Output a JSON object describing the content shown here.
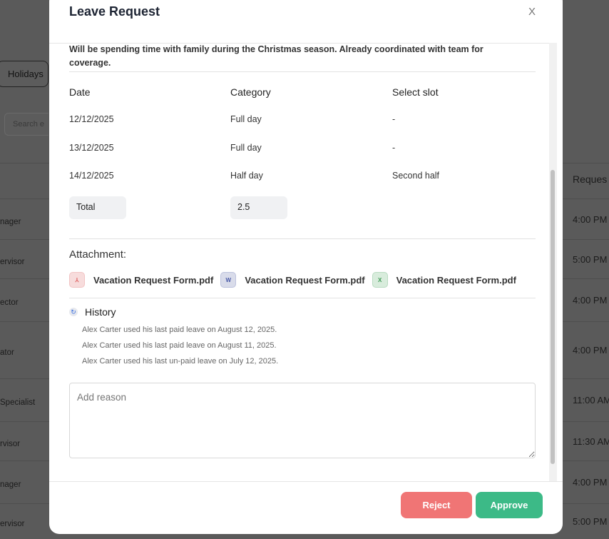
{
  "background": {
    "holidays_button": "Holidays",
    "search_placeholder": "Search e",
    "table_header_right": "Reques",
    "rows": [
      {
        "role": "nager",
        "time": "4:00 PM"
      },
      {
        "role": "ervisor",
        "time": "5:00 PM"
      },
      {
        "role": "ector",
        "time": "4:00 PM"
      },
      {
        "role": "ator",
        "time": "4:00 PM"
      },
      {
        "role": "Specialist",
        "time": "11:00 AM"
      },
      {
        "role": "rvisor",
        "time": "11:30 AM"
      },
      {
        "role": "nager",
        "time": "4:00 PM"
      },
      {
        "role": "ervisor",
        "time": "5:00 PM"
      }
    ]
  },
  "modal": {
    "title": "Leave Request",
    "close_label": "X",
    "reason_text": "Will be spending time with family during the Christmas season. Already coordinated with team for coverage.",
    "table": {
      "headers": [
        "Date",
        "Category",
        "Select slot"
      ],
      "rows": [
        [
          "12/12/2025",
          "Full day",
          "-"
        ],
        [
          "13/12/2025",
          "Full day",
          "-"
        ],
        [
          "14/12/2025",
          "Half day",
          "Second half"
        ]
      ],
      "total_label": "Total",
      "total_value": "2.5"
    },
    "attachment_label": "Attachment:",
    "attachments": [
      {
        "name": "Vacation Request Form.pdf",
        "icon": "pdf-file-icon",
        "color": "#e06666",
        "bg": "#f7dcdc",
        "glyph": "⅄"
      },
      {
        "name": "Vacation Request Form.pdf",
        "icon": "word-file-icon",
        "color": "#4a5aa8",
        "bg": "#d9dcea",
        "glyph": "W"
      },
      {
        "name": "Vacation Request Form.pdf",
        "icon": "excel-file-icon",
        "color": "#3e9a55",
        "bg": "#d8ecdc",
        "glyph": "X"
      }
    ],
    "history_label": "History",
    "history": [
      "Alex Carter used his last paid leave on August 12, 2025.",
      "Alex Carter used his last paid leave on August 11, 2025.",
      "Alex Carter used his last un-paid leave on July 12, 2025."
    ],
    "reason_placeholder": "Add reason",
    "reject_label": "Reject",
    "approve_label": "Approve",
    "colors": {
      "reject": "#f07575",
      "approve": "#3cba87"
    }
  }
}
